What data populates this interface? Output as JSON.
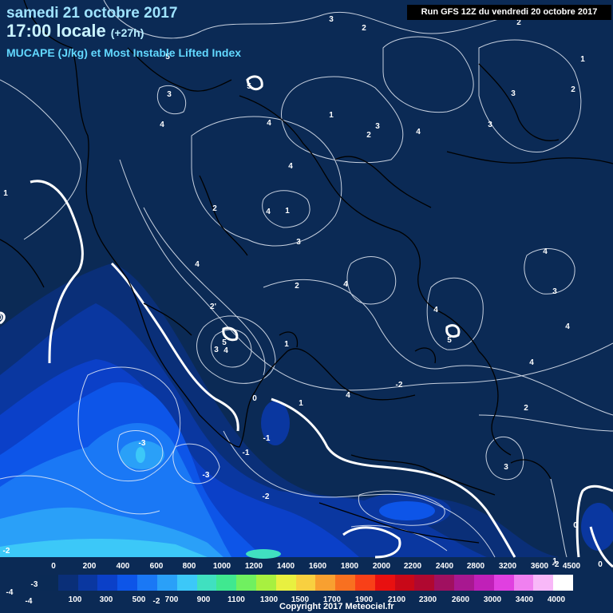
{
  "header": {
    "date": "samedi 21 octobre 2017",
    "time": "17:00 locale",
    "lead": "(+27h)",
    "parameter": "MUCAPE (J/kg) et Most Instable Lifted Index"
  },
  "run_label": "Run GFS 12Z du vendredi 20 octobre 2017",
  "legend": {
    "top_ticks": [
      "0",
      "200",
      "400",
      "600",
      "800",
      "1000",
      "1200",
      "1400",
      "1600",
      "1800",
      "2000",
      "2200",
      "2400",
      "2800",
      "3200",
      "3600",
      "4500"
    ],
    "bottom_ticks": [
      "100",
      "300",
      "500",
      "700",
      "900",
      "1100",
      "1300",
      "1500",
      "1700",
      "1900",
      "2100",
      "2300",
      "2600",
      "3000",
      "3400",
      "4000"
    ],
    "colors": [
      "#0a2a55",
      "#0a2f78",
      "#0a37a0",
      "#0b40c8",
      "#0d55e8",
      "#1a78f5",
      "#2aa0f8",
      "#3cc8f8",
      "#40e0c0",
      "#40e890",
      "#70f060",
      "#a8f040",
      "#e8f040",
      "#f8d040",
      "#f8a030",
      "#f87020",
      "#f84018",
      "#e81010",
      "#c80818",
      "#b00830",
      "#a01060",
      "#a81890",
      "#c020b8",
      "#e040e0",
      "#f080f0",
      "#f8b8f8",
      "#ffffff"
    ]
  },
  "copyright": "Copyright 2017 Meteociel.fr",
  "contour_labels": [
    {
      "t": "3"
    },
    {
      "t": "2"
    },
    {
      "t": "2"
    },
    {
      "t": "1"
    },
    {
      "t": "5"
    },
    {
      "t": "5"
    },
    {
      "t": "3"
    },
    {
      "t": "4"
    },
    {
      "t": "4"
    },
    {
      "t": "1"
    },
    {
      "t": "3"
    },
    {
      "t": "2"
    },
    {
      "t": "4"
    },
    {
      "t": "3"
    },
    {
      "t": "3"
    },
    {
      "t": "2"
    },
    {
      "t": "1"
    },
    {
      "t": "4"
    },
    {
      "t": "1"
    },
    {
      "t": "2"
    },
    {
      "t": "4"
    },
    {
      "t": "4"
    },
    {
      "t": "3"
    },
    {
      "t": "2"
    },
    {
      "t": "4"
    },
    {
      "t": "4"
    },
    {
      "t": "3"
    },
    {
      "t": "4"
    },
    {
      "t": "5"
    },
    {
      "t": "4"
    },
    {
      "t": "2'"
    },
    {
      "t": "5"
    },
    {
      "t": "4"
    },
    {
      "t": "3"
    },
    {
      "t": "1"
    },
    {
      "t": "4"
    },
    {
      "t": "4"
    },
    {
      "t": "2"
    },
    {
      "t": "0"
    },
    {
      "t": "1"
    },
    {
      "t": "-1"
    },
    {
      "t": "-3"
    },
    {
      "t": "-3"
    },
    {
      "t": "-1"
    },
    {
      "t": "-2"
    },
    {
      "t": "-2"
    },
    {
      "t": "3"
    },
    {
      "t": "-2"
    },
    {
      "t": "0"
    },
    {
      "t": "0"
    },
    {
      "t": "1"
    },
    {
      "t": "-3"
    },
    {
      "t": "-4"
    },
    {
      "t": "-4"
    },
    {
      "t": "-2"
    },
    {
      "t": "0"
    },
    {
      "t": "-2"
    }
  ]
}
